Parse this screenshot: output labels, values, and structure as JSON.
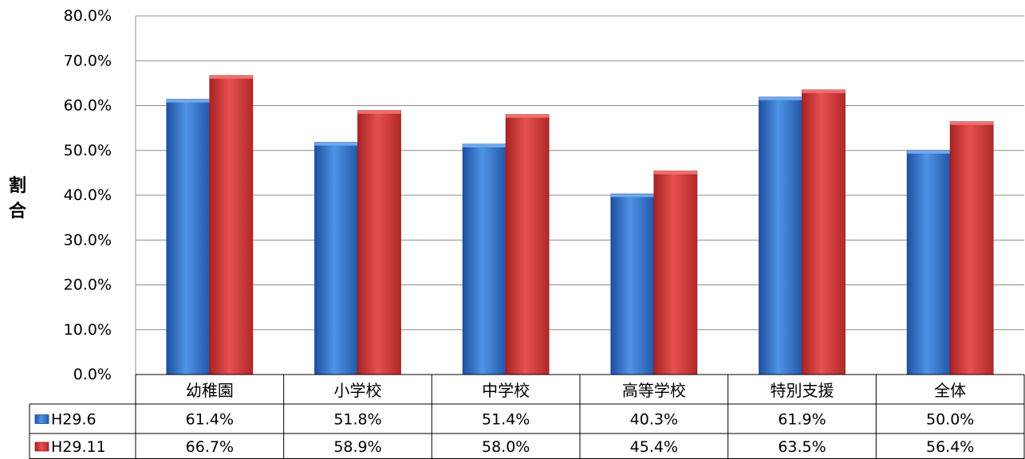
{
  "chart_data": {
    "type": "bar",
    "ylabel": "割合",
    "categories": [
      "幼稚園",
      "小学校",
      "中学校",
      "高等学校",
      "特別支援",
      "全体"
    ],
    "series": [
      {
        "name": "H29.6",
        "values": [
          61.4,
          51.8,
          51.4,
          40.3,
          61.9,
          50.0
        ],
        "labels": [
          "61.4%",
          "51.8%",
          "51.4%",
          "40.3%",
          "61.9%",
          "50.0%"
        ],
        "color": "#3C7CD4"
      },
      {
        "name": "H29.11",
        "values": [
          66.7,
          58.9,
          58.0,
          45.4,
          63.5,
          56.4
        ],
        "labels": [
          "66.7%",
          "58.9%",
          "58.0%",
          "45.4%",
          "63.5%",
          "56.4%"
        ],
        "color": "#D63C3C"
      }
    ],
    "yticks": [
      "0.0%",
      "10.0%",
      "20.0%",
      "30.0%",
      "40.0%",
      "50.0%",
      "60.0%",
      "70.0%",
      "80.0%"
    ],
    "ylim": [
      0,
      80
    ],
    "grid": true,
    "legend": "data-table"
  }
}
